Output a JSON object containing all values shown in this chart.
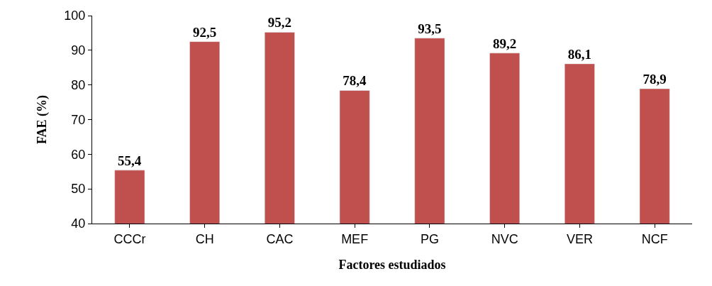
{
  "chart_data": {
    "type": "bar",
    "xlabel": "Factores estudiados",
    "ylabel": "FAE (%)",
    "categories": [
      "CCCr",
      "CH",
      "CAC",
      "MEF",
      "PG",
      "NVC",
      "VER",
      "NCF"
    ],
    "values": [
      55.4,
      92.5,
      95.2,
      78.4,
      93.5,
      89.2,
      86.1,
      78.9
    ],
    "value_labels": [
      "55,4",
      "92,5",
      "95,2",
      "78,4",
      "93,5",
      "89,2",
      "86,1",
      "78,9"
    ],
    "color": "#c0504d",
    "ylim": [
      40,
      100
    ],
    "yticks": [
      40,
      50,
      60,
      70,
      80,
      90,
      100
    ]
  }
}
